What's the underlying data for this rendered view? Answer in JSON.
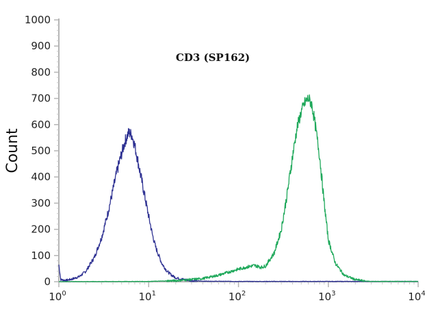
{
  "chart_data": {
    "type": "line",
    "title": "CD3 (SP162)",
    "xlabel": "",
    "ylabel": "Count",
    "x_scale": "log10",
    "xlim": [
      1,
      10000
    ],
    "ylim": [
      0,
      1000
    ],
    "y_ticks": [
      0,
      100,
      200,
      300,
      400,
      500,
      600,
      700,
      800,
      900,
      1000
    ],
    "x_ticks": [
      {
        "base": "10",
        "exp": "0"
      },
      {
        "base": "10",
        "exp": "1"
      },
      {
        "base": "10",
        "exp": "2"
      },
      {
        "base": "10",
        "exp": "3"
      },
      {
        "base": "10",
        "exp": "4"
      }
    ],
    "grid": false,
    "series": [
      {
        "color": "#2e3192",
        "x": [
          1,
          1.05,
          1.2,
          1.4,
          1.7,
          2,
          2.5,
          3,
          3.5,
          4,
          4.5,
          5,
          5.5,
          6,
          6.5,
          7,
          7.5,
          8,
          9,
          10,
          11,
          12,
          14,
          16,
          18,
          20,
          25,
          30,
          40,
          100,
          1000,
          10000
        ],
        "y": [
          65,
          8,
          5,
          10,
          20,
          40,
          95,
          170,
          260,
          350,
          430,
          490,
          540,
          570,
          560,
          520,
          470,
          420,
          330,
          250,
          180,
          130,
          70,
          40,
          25,
          15,
          8,
          4,
          2,
          1,
          1,
          1
        ]
      },
      {
        "color": "#1ea85a",
        "x": [
          1,
          10,
          20,
          40,
          60,
          80,
          100,
          120,
          150,
          180,
          200,
          250,
          300,
          350,
          400,
          450,
          500,
          550,
          600,
          650,
          700,
          800,
          900,
          1000,
          1200,
          1500,
          2000,
          2500,
          3000,
          10000
        ],
        "y": [
          0,
          1,
          4,
          12,
          25,
          38,
          48,
          55,
          62,
          55,
          60,
          110,
          200,
          340,
          480,
          590,
          650,
          685,
          700,
          680,
          620,
          480,
          300,
          160,
          70,
          25,
          8,
          3,
          1,
          1
        ]
      }
    ]
  }
}
